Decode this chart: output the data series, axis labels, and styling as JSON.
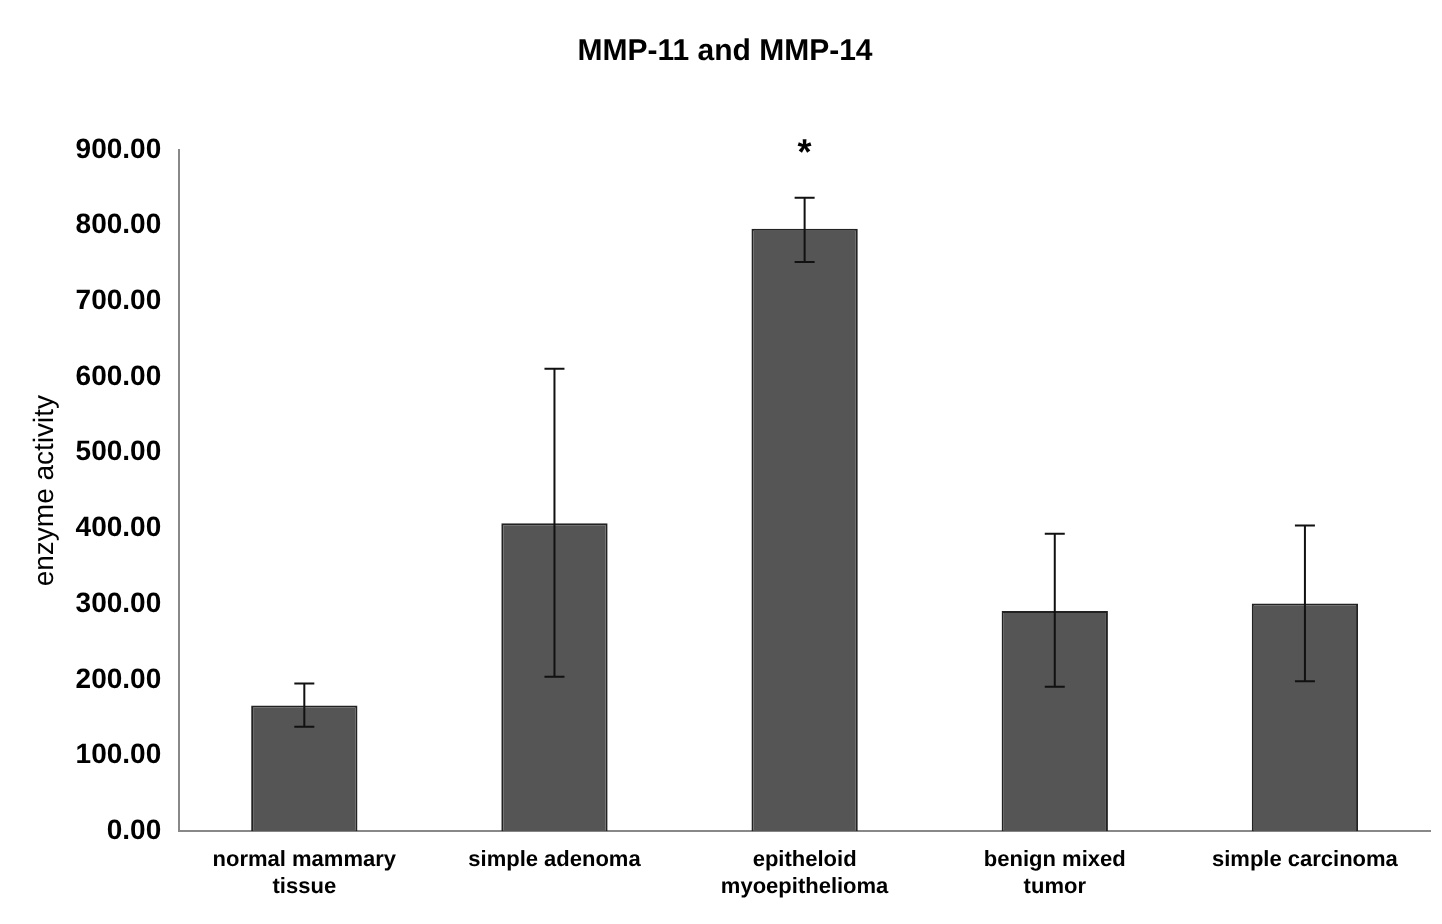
{
  "chart_data": {
    "type": "bar",
    "title": "MMP-11 and MMP-14",
    "ylabel": "enzyme activity",
    "categories": [
      "normal mammary tissue",
      "simple adenoma",
      "epitheloid myoepithelioma",
      "benign mixed tumor",
      "simple carcinoma"
    ],
    "values": [
      166,
      407,
      796,
      291,
      301
    ],
    "errors": [
      [
        138,
        195
      ],
      [
        204,
        611
      ],
      [
        752,
        837
      ],
      [
        191,
        393
      ],
      [
        198,
        404
      ]
    ],
    "color": "#555555",
    "ylim": [
      0,
      900
    ],
    "yticks": [
      {
        "value": 0,
        "label": "0.00"
      },
      {
        "value": 100,
        "label": "100.00"
      },
      {
        "value": 200,
        "label": "200.00"
      },
      {
        "value": 300,
        "label": "300.00"
      },
      {
        "value": 400,
        "label": "400.00"
      },
      {
        "value": 500,
        "label": "500.00"
      },
      {
        "value": 600,
        "label": "600.00"
      },
      {
        "value": 700,
        "label": "700.00"
      },
      {
        "value": 800,
        "label": "800.00"
      },
      {
        "value": 900,
        "label": "900.00"
      }
    ],
    "grid": false,
    "legend": false,
    "annotations": [
      "*"
    ]
  }
}
